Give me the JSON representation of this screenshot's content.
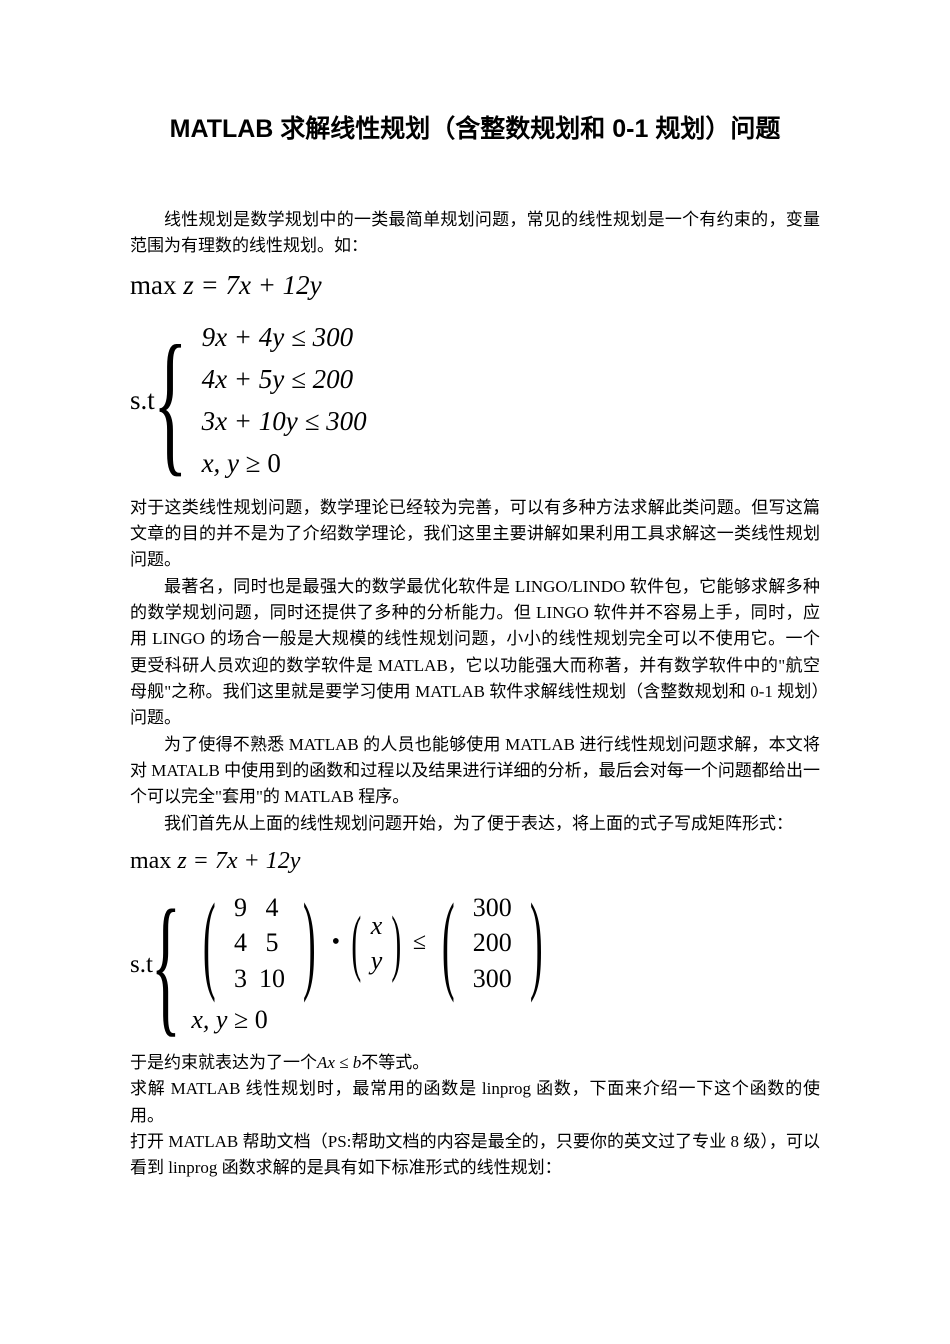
{
  "title": "MATLAB 求解线性规划（含整数规划和 0-1 规划）问题",
  "p1": "线性规划是数学规划中的一类最简单规划问题，常见的线性规划是一个有约束的，变量范围为有理数的线性规划。如：",
  "obj1_prefix": "max ",
  "obj1_body": "z = 7x + 12y",
  "st_label": "s.t",
  "c1": {
    "a": "9x + 4y ≤ 300",
    "b": "4x + 5y ≤ 200",
    "c": "3x + 10y ≤ 300",
    "d_lhs": "x, y",
    "d_op": " ≥ 0"
  },
  "p2": "对于这类线性规划问题，数学理论已经较为完善，可以有多种方法求解此类问题。但写这篇文章的目的并不是为了介绍数学理论，我们这里主要讲解如果利用工具求解这一类线性规划问题。",
  "p3": "最著名，同时也是最强大的数学最优化软件是 LINGO/LINDO 软件包，它能够求解多种的数学规划问题，同时还提供了多种的分析能力。但 LINGO 软件并不容易上手，同时，应用 LINGO 的场合一般是大规模的线性规划问题，小小的线性规划完全可以不使用它。一个更受科研人员欢迎的数学软件是 MATLAB，它以功能强大而称著，并有数学软件中的\"航空母舰\"之称。我们这里就是要学习使用 MATLAB 软件求解线性规划（含整数规划和 0-1 规划）问题。",
  "p4": "为了使得不熟悉 MATLAB 的人员也能够使用 MATLAB 进行线性规划问题求解，本文将对 MATALB 中使用到的函数和过程以及结果进行详细的分析，最后会对每一个问题都给出一个可以完全\"套用\"的 MATLAB 程序。",
  "p5": "我们首先从上面的线性规划问题开始，为了便于表达，将上面的式子写成矩阵形式：",
  "obj2_prefix": "max ",
  "obj2_body": "z = 7x + 12y",
  "matrix": {
    "A": [
      [
        "9",
        "4"
      ],
      [
        "4",
        "5"
      ],
      [
        "3",
        "10"
      ]
    ],
    "x": [
      "x",
      "y"
    ],
    "b": [
      "300",
      "200",
      "300"
    ],
    "dot": "•",
    "le": "≤"
  },
  "xyge_lhs": "x, y",
  "xyge_op": " ≥ 0",
  "p6a": "于是约束就表达为了一个",
  "p6m": "Ax ≤ b",
  "p6b": "不等式。",
  "p7": "求解 MATLAB 线性规划时，最常用的函数是 linprog 函数，下面来介绍一下这个函数的使用。",
  "p8": "打开 MATLAB 帮助文档（PS:帮助文档的内容是最全的，只要你的英文过了专业 8 级），可以看到 linprog 函数求解的是具有如下标准形式的线性规划："
}
